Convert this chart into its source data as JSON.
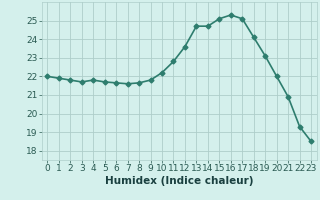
{
  "x": [
    0,
    1,
    2,
    3,
    4,
    5,
    6,
    7,
    8,
    9,
    10,
    11,
    12,
    13,
    14,
    15,
    16,
    17,
    18,
    19,
    20,
    21,
    22,
    23
  ],
  "y": [
    22.0,
    21.9,
    21.8,
    21.7,
    21.8,
    21.7,
    21.65,
    21.6,
    21.65,
    21.8,
    22.2,
    22.8,
    23.6,
    24.7,
    24.7,
    25.1,
    25.3,
    25.1,
    24.1,
    23.1,
    22.0,
    20.9,
    19.3,
    18.5
  ],
  "line_color": "#2e7d6e",
  "marker": "D",
  "marker_size": 2.5,
  "bg_color": "#d4f0ec",
  "grid_color": "#aececa",
  "xlabel": "Humidex (Indice chaleur)",
  "ylim": [
    17.5,
    26.0
  ],
  "xlim": [
    -0.5,
    23.5
  ],
  "yticks": [
    18,
    19,
    20,
    21,
    22,
    23,
    24,
    25
  ],
  "xtick_labels": [
    "0",
    "1",
    "2",
    "3",
    "4",
    "5",
    "6",
    "7",
    "8",
    "9",
    "10",
    "11",
    "12",
    "13",
    "14",
    "15",
    "16",
    "17",
    "18",
    "19",
    "20",
    "21",
    "22",
    "23"
  ],
  "xlabel_fontsize": 7.5,
  "tick_fontsize": 6.5,
  "line_width": 1.2
}
